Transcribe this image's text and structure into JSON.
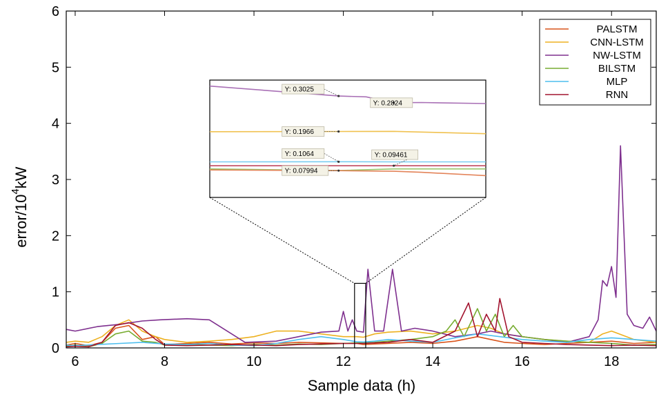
{
  "chart_data": {
    "type": "line",
    "title": "",
    "xlabel": "Sample data (h)",
    "ylabel_base": "error/10",
    "ylabel_exp": "4",
    "ylabel_unit": "kW",
    "xlim": [
      5.8,
      19
    ],
    "ylim": [
      0,
      6
    ],
    "xticks": [
      6,
      8,
      10,
      12,
      14,
      16,
      18
    ],
    "yticks": [
      0,
      1,
      2,
      3,
      4,
      5,
      6
    ],
    "legend_position": "top-right",
    "series": [
      {
        "name": "PALSTM",
        "color": "#d95319",
        "x": [
          5.8,
          6.0,
          6.3,
          6.6,
          6.9,
          7.2,
          7.5,
          7.8,
          8.0,
          8.5,
          9.0,
          9.5,
          10.0,
          10.5,
          11.0,
          11.5,
          12.0,
          12.3,
          12.45,
          12.7,
          13.0,
          13.5,
          14.0,
          14.5,
          15.0,
          15.3,
          15.6,
          16.0,
          16.5,
          17.0,
          17.5,
          18.0,
          18.5,
          19.0
        ],
        "y": [
          0.05,
          0.08,
          0.04,
          0.1,
          0.35,
          0.4,
          0.15,
          0.2,
          0.06,
          0.08,
          0.1,
          0.07,
          0.09,
          0.08,
          0.1,
          0.09,
          0.08,
          0.08,
          0.06,
          0.07,
          0.08,
          0.1,
          0.08,
          0.12,
          0.2,
          0.15,
          0.1,
          0.08,
          0.06,
          0.08,
          0.1,
          0.12,
          0.08,
          0.1
        ]
      },
      {
        "name": "CNN-LSTM",
        "color": "#edb120",
        "x": [
          5.8,
          6.0,
          6.3,
          6.6,
          6.9,
          7.2,
          7.5,
          7.8,
          8.0,
          8.5,
          9.0,
          9.5,
          10.0,
          10.5,
          11.0,
          11.5,
          12.0,
          12.3,
          12.45,
          12.7,
          13.0,
          13.5,
          14.0,
          14.5,
          15.0,
          15.3,
          15.6,
          16.0,
          16.5,
          17.0,
          17.5,
          17.8,
          18.0,
          18.5,
          19.0
        ],
        "y": [
          0.1,
          0.12,
          0.1,
          0.2,
          0.4,
          0.5,
          0.3,
          0.2,
          0.15,
          0.1,
          0.12,
          0.15,
          0.2,
          0.3,
          0.3,
          0.25,
          0.2,
          0.2,
          0.19,
          0.25,
          0.28,
          0.3,
          0.25,
          0.3,
          0.4,
          0.35,
          0.25,
          0.2,
          0.15,
          0.12,
          0.1,
          0.25,
          0.3,
          0.15,
          0.1
        ]
      },
      {
        "name": "NW-LSTM",
        "color": "#7e2f8e",
        "x": [
          5.8,
          6.0,
          6.5,
          7.0,
          7.5,
          7.9,
          8.5,
          9.0,
          9.5,
          9.8,
          10.5,
          11.0,
          11.5,
          11.9,
          12.0,
          12.1,
          12.2,
          12.3,
          12.45,
          12.55,
          12.7,
          12.9,
          13.1,
          13.3,
          13.6,
          14.0,
          14.5,
          15.0,
          15.3,
          15.6,
          16.0,
          16.5,
          17.0,
          17.5,
          17.7,
          17.8,
          17.9,
          18.0,
          18.1,
          18.2,
          18.35,
          18.5,
          18.7,
          18.85,
          19.0
        ],
        "y": [
          0.33,
          0.3,
          0.38,
          0.42,
          0.48,
          0.5,
          0.52,
          0.5,
          0.25,
          0.1,
          0.12,
          0.2,
          0.28,
          0.3,
          0.65,
          0.3,
          0.5,
          0.3,
          0.28,
          1.4,
          0.3,
          0.3,
          1.4,
          0.3,
          0.35,
          0.3,
          0.2,
          0.25,
          0.3,
          0.25,
          0.2,
          0.15,
          0.1,
          0.2,
          0.5,
          1.2,
          1.1,
          1.45,
          0.9,
          3.6,
          0.6,
          0.4,
          0.35,
          0.55,
          0.3
        ]
      },
      {
        "name": "BILSTM",
        "color": "#77ac30",
        "x": [
          5.8,
          6.0,
          6.3,
          6.6,
          6.9,
          7.2,
          7.5,
          7.8,
          8.0,
          8.5,
          9.0,
          9.5,
          10.0,
          10.5,
          11.0,
          11.5,
          12.0,
          12.3,
          12.45,
          12.7,
          13.0,
          13.5,
          14.0,
          14.3,
          14.5,
          14.7,
          15.0,
          15.2,
          15.4,
          15.6,
          15.8,
          16.0,
          16.5,
          17.0,
          17.5,
          18.0,
          18.5,
          19.0
        ],
        "y": [
          0.03,
          0.05,
          0.02,
          0.08,
          0.25,
          0.3,
          0.12,
          0.1,
          0.05,
          0.06,
          0.05,
          0.04,
          0.06,
          0.05,
          0.07,
          0.06,
          0.08,
          0.09,
          0.095,
          0.1,
          0.12,
          0.15,
          0.2,
          0.3,
          0.5,
          0.2,
          0.7,
          0.3,
          0.6,
          0.2,
          0.4,
          0.2,
          0.15,
          0.12,
          0.1,
          0.08,
          0.05,
          0.06
        ]
      },
      {
        "name": "MLP",
        "color": "#4dbeee",
        "x": [
          5.8,
          6.0,
          6.5,
          7.0,
          7.5,
          8.0,
          8.5,
          9.0,
          9.5,
          10.0,
          10.5,
          11.0,
          11.5,
          12.0,
          12.3,
          12.45,
          12.7,
          13.0,
          13.5,
          14.0,
          14.5,
          15.0,
          15.5,
          16.0,
          16.5,
          17.0,
          17.5,
          18.0,
          18.5,
          19.0
        ],
        "y": [
          0.05,
          0.04,
          0.06,
          0.08,
          0.1,
          0.07,
          0.06,
          0.08,
          0.05,
          0.04,
          0.08,
          0.15,
          0.2,
          0.15,
          0.11,
          0.106,
          0.12,
          0.15,
          0.12,
          0.1,
          0.18,
          0.25,
          0.2,
          0.15,
          0.12,
          0.1,
          0.15,
          0.18,
          0.15,
          0.12
        ]
      },
      {
        "name": "RNN",
        "color": "#a2142f",
        "x": [
          5.8,
          6.0,
          6.3,
          6.6,
          6.9,
          7.2,
          7.5,
          7.8,
          8.0,
          8.5,
          9.0,
          9.5,
          10.0,
          10.5,
          11.0,
          11.5,
          12.0,
          12.3,
          12.45,
          12.7,
          13.0,
          13.5,
          14.0,
          14.5,
          14.8,
          15.0,
          15.2,
          15.4,
          15.5,
          15.7,
          16.0,
          16.5,
          17.0,
          17.5,
          18.0,
          18.5,
          19.0
        ],
        "y": [
          0.02,
          0.03,
          0.02,
          0.1,
          0.4,
          0.45,
          0.35,
          0.15,
          0.05,
          0.04,
          0.05,
          0.06,
          0.05,
          0.04,
          0.06,
          0.07,
          0.08,
          0.08,
          0.08,
          0.09,
          0.1,
          0.15,
          0.1,
          0.3,
          0.8,
          0.2,
          0.6,
          0.3,
          0.88,
          0.2,
          0.1,
          0.08,
          0.06,
          0.05,
          0.04,
          0.05,
          0.04
        ]
      }
    ],
    "zoom_box": {
      "x_range": [
        12.25,
        12.5
      ],
      "y_range": [
        0,
        1.15
      ]
    },
    "inset": {
      "x_range": [
        12.3,
        12.6
      ],
      "y_range": [
        0.0,
        0.35
      ],
      "series": [
        {
          "name": "NW-LSTM",
          "color": "#a86fb5",
          "x": [
            12.3,
            12.44,
            12.47,
            12.5,
            12.53,
            12.6
          ],
          "y": [
            0.332,
            0.3025,
            0.3,
            0.2824,
            0.283,
            0.28
          ]
        },
        {
          "name": "CNN-LSTM",
          "color": "#f0c14f",
          "x": [
            12.3,
            12.44,
            12.5,
            12.6
          ],
          "y": [
            0.196,
            0.1966,
            0.197,
            0.19
          ]
        },
        {
          "name": "MLP",
          "color": "#7acdf1",
          "x": [
            12.3,
            12.44,
            12.5,
            12.6
          ],
          "y": [
            0.106,
            0.1064,
            0.106,
            0.106
          ]
        },
        {
          "name": "RNN",
          "color": "#c0475e",
          "x": [
            12.3,
            12.44,
            12.5,
            12.6
          ],
          "y": [
            0.0946,
            0.0946,
            0.0946,
            0.0946
          ]
        },
        {
          "name": "BILSTM",
          "color": "#96c46a",
          "x": [
            12.3,
            12.44,
            12.5,
            12.6
          ],
          "y": [
            0.085,
            0.08,
            0.085,
            0.085
          ]
        },
        {
          "name": "PALSTM",
          "color": "#e38358",
          "x": [
            12.3,
            12.44,
            12.5,
            12.53,
            12.6
          ],
          "y": [
            0.082,
            0.07994,
            0.078,
            0.075,
            0.065
          ]
        }
      ],
      "datatips": [
        {
          "label": "Y: 0.3025",
          "series": "NW-LSTM",
          "x": 12.44,
          "y": 0.3025
        },
        {
          "label": "Y: 0.2824",
          "series": "NW-LSTM",
          "x": 12.5,
          "y": 0.2824
        },
        {
          "label": "Y: 0.1966",
          "series": "CNN-LSTM",
          "x": 12.44,
          "y": 0.1966
        },
        {
          "label": "Y: 0.1064",
          "series": "MLP",
          "x": 12.44,
          "y": 0.1064
        },
        {
          "label": "Y: 0.09461",
          "series": "RNN",
          "x": 12.5,
          "y": 0.09461
        },
        {
          "label": "Y: 0.07994",
          "series": "PALSTM",
          "x": 12.44,
          "y": 0.07994
        }
      ]
    }
  }
}
